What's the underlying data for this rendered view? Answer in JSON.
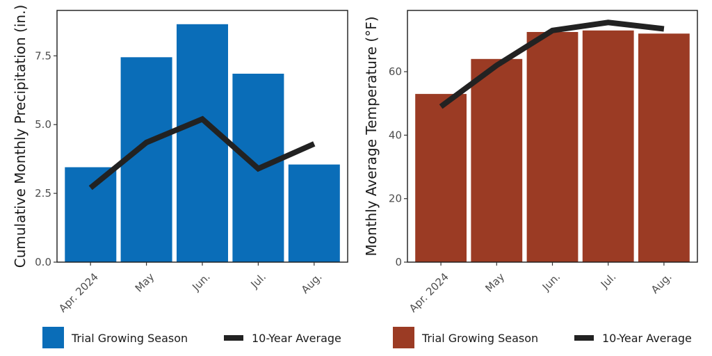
{
  "colors": {
    "precip_bar": "#0a6db8",
    "temp_bar": "#9b3b24",
    "avg_line": "#222222"
  },
  "legend": {
    "trial_label": "Trial Growing Season",
    "avg_label": "10-Year Average"
  },
  "chart_data": [
    {
      "type": "bar",
      "categories": [
        "Apr. 2024",
        "May",
        "Jun.",
        "Jul.",
        "Aug."
      ],
      "series": [
        {
          "name": "Trial Growing Season",
          "kind": "bar",
          "values": [
            3.45,
            7.45,
            8.65,
            6.85,
            3.55
          ]
        },
        {
          "name": "10-Year Average",
          "kind": "line",
          "values": [
            2.7,
            4.35,
            5.2,
            3.4,
            4.3
          ]
        }
      ],
      "title": "",
      "xlabel": "",
      "ylabel": "Cumulative Monthly Precipitation (in.)",
      "yticks": [
        "0.0",
        "2.5",
        "5.0",
        "7.5"
      ],
      "ylim": [
        0,
        9.15
      ]
    },
    {
      "type": "bar",
      "categories": [
        "Apr. 2024",
        "May",
        "Jun.",
        "Jul.",
        "Aug."
      ],
      "series": [
        {
          "name": "Trial Growing Season",
          "kind": "bar",
          "values": [
            53,
            64,
            72.5,
            73,
            72
          ]
        },
        {
          "name": "10-Year Average",
          "kind": "line",
          "values": [
            49,
            62,
            73,
            75.5,
            73.5
          ]
        }
      ],
      "title": "",
      "xlabel": "",
      "ylabel": "Monthly Average Temperature  (°F)",
      "yticks": [
        "0",
        "20",
        "40",
        "60"
      ],
      "ylim": [
        0,
        79.3
      ]
    }
  ]
}
